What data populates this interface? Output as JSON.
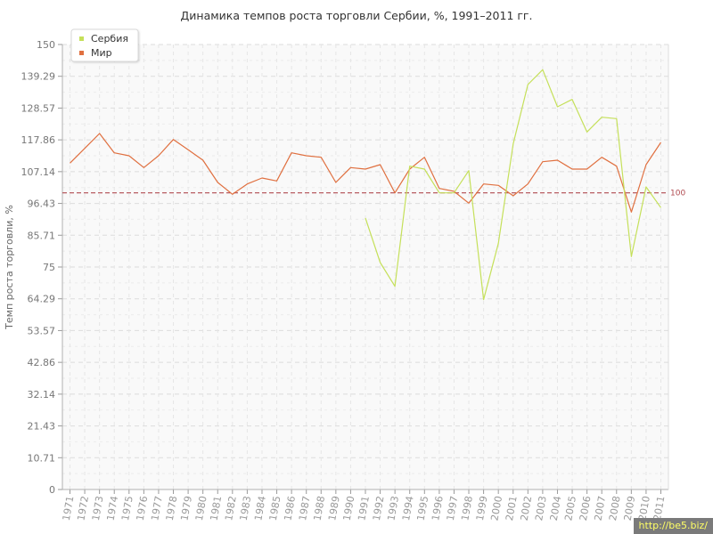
{
  "chart_data": {
    "type": "line",
    "title": "Динамика темпов роста торговли Сербии, %, 1991–2011 гг.",
    "xlabel": "",
    "ylabel": "Темп роста торговли, %",
    "ylim": [
      0,
      150
    ],
    "y_ticks": [
      "0",
      "10.71",
      "21.43",
      "32.14",
      "42.86",
      "53.57",
      "64.29",
      "75",
      "85.71",
      "96.43",
      "107.14",
      "117.86",
      "128.57",
      "139.29",
      "150"
    ],
    "categories": [
      "1971",
      "1972",
      "1973",
      "1974",
      "1975",
      "1976",
      "1977",
      "1978",
      "1979",
      "1980",
      "1981",
      "1982",
      "1983",
      "1984",
      "1985",
      "1986",
      "1987",
      "1988",
      "1989",
      "1990",
      "1991",
      "1992",
      "1993",
      "1994",
      "1995",
      "1996",
      "1997",
      "1998",
      "1999",
      "2000",
      "2001",
      "2002",
      "2003",
      "2004",
      "2005",
      "2006",
      "2007",
      "2008",
      "2009",
      "2010",
      "2011"
    ],
    "reference_line": {
      "value": 100,
      "label": "100",
      "color": "#b04a50"
    },
    "legend_position": "top-left",
    "grid": true,
    "series": [
      {
        "name": "Сербия",
        "color": "#c5e05a",
        "values": [
          null,
          null,
          null,
          null,
          null,
          null,
          null,
          null,
          null,
          null,
          null,
          null,
          null,
          null,
          null,
          null,
          null,
          null,
          null,
          null,
          91.5,
          76.5,
          68.5,
          109,
          108,
          100,
          100,
          107.5,
          64,
          83,
          116.5,
          136.5,
          141.5,
          129,
          131.5,
          120.5,
          125.5,
          125,
          78.5,
          102,
          95
        ]
      },
      {
        "name": "Мир",
        "color": "#e07040",
        "values": [
          110,
          115,
          120,
          113.5,
          112.5,
          108.5,
          112.5,
          118,
          114.5,
          111,
          103.5,
          99.5,
          103,
          105,
          104,
          113.5,
          112.5,
          112,
          103.5,
          108.5,
          108,
          109.5,
          100,
          108,
          112,
          101.5,
          100.5,
          96.5,
          103,
          102.5,
          99,
          103,
          110.5,
          111,
          108,
          108,
          112,
          109,
          93.5,
          109.5,
          117
        ]
      }
    ]
  },
  "watermark": "http://be5.biz/"
}
